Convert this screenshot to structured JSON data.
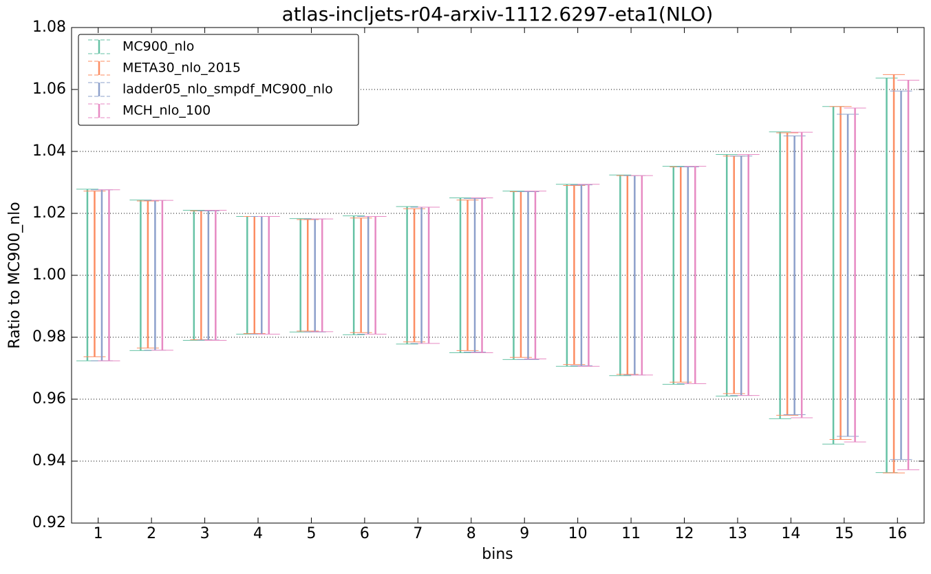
{
  "chart_data": {
    "type": "errorbar",
    "title": "atlas-incljets-r04-arxiv-1112.6297-eta1(NLO)",
    "xlabel": "bins",
    "ylabel": "Ratio to MC900_nlo",
    "x": [
      1,
      2,
      3,
      4,
      5,
      6,
      7,
      8,
      9,
      10,
      11,
      12,
      13,
      14,
      15,
      16
    ],
    "xlim": [
      0.5,
      16.5
    ],
    "xticks": [
      1,
      2,
      3,
      4,
      5,
      6,
      7,
      8,
      9,
      10,
      11,
      12,
      13,
      14,
      15,
      16
    ],
    "ylim": [
      0.92,
      1.08
    ],
    "yticks": [
      {
        "value": 0.92,
        "label": "0.92"
      },
      {
        "value": 0.94,
        "label": "0.94"
      },
      {
        "value": 0.96,
        "label": "0.96"
      },
      {
        "value": 0.98,
        "label": "0.98"
      },
      {
        "value": 1.0,
        "label": "1.00"
      },
      {
        "value": 1.02,
        "label": "1.02"
      },
      {
        "value": 1.04,
        "label": "1.04"
      },
      {
        "value": 1.06,
        "label": "1.06"
      },
      {
        "value": 1.08,
        "label": "1.08"
      }
    ],
    "grid": true,
    "legend": "upper left",
    "series": [
      {
        "name": "MC900_nlo",
        "color": "#66c2a5",
        "low": [
          0.9724,
          0.9757,
          0.979,
          0.981,
          0.9817,
          0.9808,
          0.9778,
          0.975,
          0.9728,
          0.9706,
          0.9676,
          0.9648,
          0.961,
          0.9537,
          0.9455,
          0.9363
        ],
        "high": [
          1.0278,
          1.0243,
          1.021,
          1.019,
          1.0183,
          1.0192,
          1.0222,
          1.025,
          1.0272,
          1.0294,
          1.0324,
          1.0352,
          1.039,
          1.0463,
          1.0545,
          1.0637
        ]
      },
      {
        "name": "META30_nlo_2015",
        "color": "#fc8d62",
        "low": [
          0.9737,
          0.9765,
          0.9792,
          0.9812,
          0.982,
          0.9815,
          0.9785,
          0.9757,
          0.9735,
          0.9712,
          0.968,
          0.9655,
          0.9618,
          0.9548,
          0.947,
          0.9362
        ],
        "high": [
          1.0272,
          1.024,
          1.0208,
          1.019,
          1.018,
          1.0185,
          1.0215,
          1.0243,
          1.027,
          1.029,
          1.0322,
          1.035,
          1.0385,
          1.046,
          1.0545,
          1.0648
        ]
      },
      {
        "name": "ladder05_nlo_smpdf_MC900_nlo",
        "color": "#8da0cb",
        "low": [
          0.9724,
          0.9758,
          0.9791,
          0.981,
          0.9817,
          0.981,
          0.978,
          0.9752,
          0.9728,
          0.9708,
          0.9678,
          0.965,
          0.9612,
          0.955,
          0.948,
          0.9405
        ],
        "high": [
          1.0276,
          1.0242,
          1.0208,
          1.019,
          1.0182,
          1.019,
          1.022,
          1.0248,
          1.027,
          1.0292,
          1.0322,
          1.035,
          1.0385,
          1.045,
          1.052,
          1.0595
        ]
      },
      {
        "name": "MCH_nlo_100",
        "color": "#e78ac3",
        "low": [
          0.9724,
          0.9758,
          0.979,
          0.981,
          0.9818,
          0.981,
          0.978,
          0.975,
          0.973,
          0.9706,
          0.9678,
          0.965,
          0.9612,
          0.954,
          0.9462,
          0.9372
        ],
        "high": [
          1.0276,
          1.0242,
          1.021,
          1.019,
          1.0182,
          1.019,
          1.022,
          1.025,
          1.0272,
          1.0294,
          1.0322,
          1.0352,
          1.039,
          1.0462,
          1.054,
          1.063
        ]
      }
    ]
  }
}
